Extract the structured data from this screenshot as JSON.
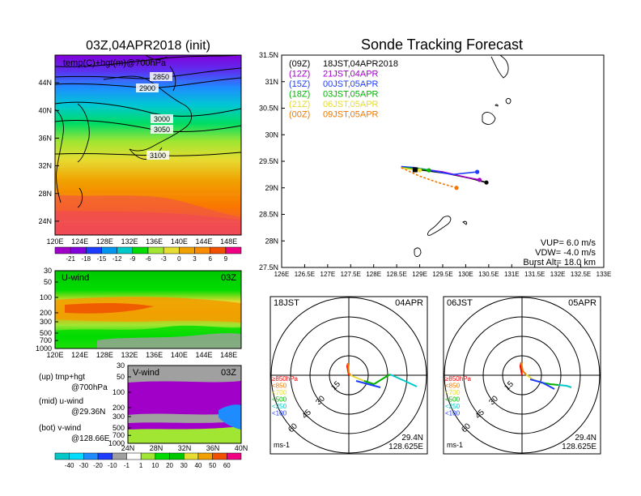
{
  "left_top": {
    "title": "03Z,04APR2018 (init)",
    "inner_label": "temp(C)+hgt(m)@700hPa",
    "contours": [
      "2850",
      "2900",
      "3000",
      "3050",
      "3100"
    ],
    "lat_ticks": [
      "44N",
      "40N",
      "36N",
      "32N",
      "28N",
      "24N"
    ],
    "lon_ticks": [
      "120E",
      "124E",
      "128E",
      "132E",
      "136E",
      "140E",
      "144E",
      "148E"
    ],
    "colorbar_labels": [
      "-21",
      "-18",
      "-15",
      "-12",
      "-9",
      "-6",
      "-3",
      "0",
      "3",
      "6",
      "9"
    ],
    "colorbar_colors": [
      "#a000c8",
      "#8200dc",
      "#1e3cff",
      "#0096f0",
      "#00c8c8",
      "#00dc00",
      "#a0e632",
      "#e6dc32",
      "#f0a000",
      "#fa8c00",
      "#f05000",
      "#f00082"
    ]
  },
  "u_panel": {
    "title": "U-wind",
    "time": "03Z",
    "p_ticks": [
      "30",
      "50",
      "100",
      "200",
      "300",
      "500",
      "700",
      "1000"
    ],
    "lon_ticks": [
      "120E",
      "124E",
      "128E",
      "132E",
      "136E",
      "140E",
      "144E",
      "148E"
    ]
  },
  "v_panel": {
    "title": "V-wind",
    "time": "03Z",
    "p_ticks": [
      "30",
      "50",
      "100",
      "200",
      "300",
      "500",
      "700",
      "1000"
    ],
    "lat_ticks": [
      "24N",
      "28N",
      "32N",
      "36N",
      "40N"
    ]
  },
  "legend": {
    "up": "(up) tmp+hgt",
    "up2": "@700hPa",
    "mid": "(mid) u-wind",
    "mid2": "@29.36N",
    "bot": "(bot) v-wind",
    "bot2": "@128.66E"
  },
  "bottom_colorbar": {
    "labels": [
      "-40",
      "-30",
      "-20",
      "-10",
      "-1",
      "1",
      "10",
      "20",
      "30",
      "40",
      "50",
      "60"
    ],
    "colors": [
      "#00c8c8",
      "#00dcff",
      "#1e8cff",
      "#1e3cff",
      "#a0a0a0",
      "#ffffff",
      "#a0e632",
      "#00dc00",
      "#00c800",
      "#e6dc32",
      "#f0a000",
      "#f05000",
      "#f00082"
    ]
  },
  "tracking": {
    "title": "Sonde Tracking Forecast",
    "lat_ticks": [
      "31.5N",
      "31N",
      "30.5N",
      "30N",
      "29.5N",
      "29N",
      "28.5N",
      "28N",
      "27.5N"
    ],
    "lon_ticks": [
      "126E",
      "126.5E",
      "127E",
      "127.5E",
      "128E",
      "128.5E",
      "129E",
      "129.5E",
      "130E",
      "130.5E",
      "131E",
      "131.5E",
      "132E",
      "132.5E",
      "133E"
    ],
    "launches": [
      {
        "left": "(09Z)",
        "right": "18JST,04APR2018",
        "color": "#000000"
      },
      {
        "left": "(12Z)",
        "right": "21JST,04APR",
        "color": "#a000c8"
      },
      {
        "left": "(15Z)",
        "right": "00JST,05APR",
        "color": "#1e3cff"
      },
      {
        "left": "(18Z)",
        "right": "03JST,05APR",
        "color": "#00b400"
      },
      {
        "left": "(21Z)",
        "right": "06JST,05APR",
        "color": "#e6dc32"
      },
      {
        "left": "(00Z)",
        "right": "09JST,05APR",
        "color": "#f07800"
      }
    ],
    "info": [
      "VUP= 6.0 m/s",
      "VDW= -4.0 m/s",
      "Burst Alt= 18.0 km"
    ]
  },
  "chart_data": [
    {
      "type": "heatmap",
      "title": "03Z,04APR2018 (init)",
      "label": "temp(C)+hgt(m)@700hPa",
      "xlim": [
        120,
        150
      ],
      "ylim": [
        22,
        48
      ],
      "height_contours_m": [
        2850,
        2900,
        3000,
        3050,
        3100
      ],
      "colorbar": [
        -21,
        -18,
        -15,
        -12,
        -9,
        -6,
        -3,
        0,
        3,
        6,
        9
      ]
    },
    {
      "type": "heatmap",
      "title": "U-wind",
      "x": "longitude",
      "y": "pressure (hPa)",
      "ylevels": [
        30,
        50,
        100,
        200,
        300,
        500,
        700,
        1000
      ],
      "jet_core_level_hPa": 200
    },
    {
      "type": "heatmap",
      "title": "V-wind",
      "x": "latitude",
      "y": "pressure (hPa)",
      "ylevels": [
        30,
        50,
        100,
        200,
        300,
        500,
        700,
        1000
      ]
    },
    {
      "type": "line",
      "title": "Sonde Tracking Forecast",
      "xlim": [
        126,
        133
      ],
      "ylim": [
        27.5,
        31.5
      ],
      "series": [
        {
          "name": "(09Z) 18JST,04APR2018",
          "x": [
            128.6,
            129.0,
            129.6,
            130.1,
            130.45
          ],
          "y": [
            29.38,
            29.34,
            29.27,
            29.18,
            29.1
          ]
        },
        {
          "name": "(12Z) 21JST,04APR",
          "x": [
            128.6,
            129.0,
            129.5,
            130.0,
            130.3
          ],
          "y": [
            29.4,
            29.36,
            29.3,
            29.2,
            29.15
          ]
        },
        {
          "name": "(15Z) 00JST,05APR",
          "x": [
            128.6,
            128.9,
            129.3,
            129.7,
            130.25
          ],
          "y": [
            29.4,
            29.38,
            29.32,
            29.25,
            29.3
          ]
        },
        {
          "name": "(18Z) 03JST,05APR",
          "x": [
            128.6,
            129.0,
            129.2
          ],
          "y": [
            29.38,
            29.36,
            29.33
          ]
        },
        {
          "name": "(21Z) 06JST,05APR",
          "x": [
            128.6,
            128.8,
            129.0
          ],
          "y": [
            29.38,
            29.35,
            29.33
          ]
        },
        {
          "name": "(00Z) 09JST,05APR",
          "x": [
            128.6,
            128.8,
            129.0,
            129.4,
            129.8
          ],
          "y": [
            29.38,
            29.3,
            29.22,
            29.1,
            29.0
          ]
        }
      ],
      "annotations": [
        "VUP= 6.0 m/s",
        "VDW= -4.0 m/s",
        "Burst Alt= 18.0 km"
      ]
    }
  ],
  "hodo1": {
    "time": "18JST",
    "date": "04APR",
    "ring_labels": [
      "15",
      "30",
      "45",
      "60"
    ],
    "levels": [
      "≥850hPa",
      "<850",
      "<700",
      "<500",
      "<250",
      "<100"
    ],
    "level_colors": [
      "#f00000",
      "#f07800",
      "#e6dc32",
      "#00b400",
      "#00c8c8",
      "#1e3cff"
    ],
    "unit": "ms-1",
    "lat": "29.4N",
    "lon": "128.625E"
  },
  "hodo2": {
    "time": "06JST",
    "date": "05APR",
    "ring_labels": [
      "15",
      "30",
      "45",
      "60"
    ],
    "levels": [
      "≥850hPa",
      "<850",
      "<700",
      "<500",
      "<250",
      "<100"
    ],
    "level_colors": [
      "#f00000",
      "#f07800",
      "#e6dc32",
      "#00b400",
      "#00c8c8",
      "#1e3cff"
    ],
    "unit": "ms-1",
    "lat": "29.4N",
    "lon": "128.625E"
  }
}
